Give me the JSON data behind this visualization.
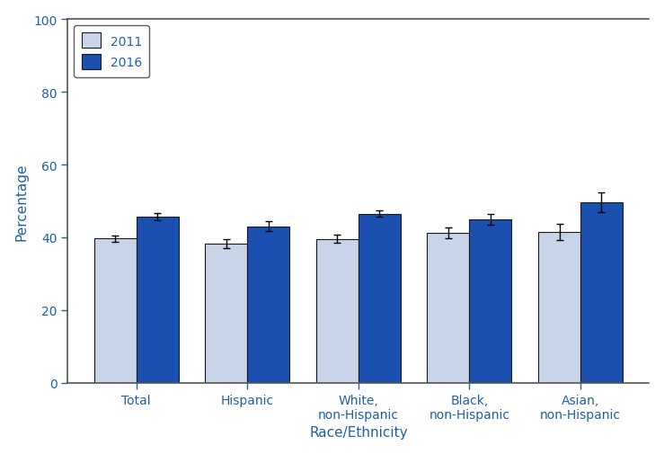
{
  "categories": [
    "Total",
    "Hispanic",
    "White,\nnon-Hispanic",
    "Black,\nnon-Hispanic",
    "Asian,\nnon-Hispanic"
  ],
  "values_2011": [
    39.7,
    38.3,
    39.6,
    41.2,
    41.5
  ],
  "values_2016": [
    45.7,
    43.0,
    46.5,
    44.9,
    49.6
  ],
  "errors_2011": [
    0.9,
    1.2,
    1.1,
    1.5,
    2.2
  ],
  "errors_2016": [
    0.9,
    1.4,
    0.8,
    1.5,
    2.8
  ],
  "color_2011": "#c8d4e8",
  "color_2016": "#1b50b0",
  "bar_edge_color": "#1a1a1a",
  "error_color": "#000000",
  "ylabel": "Percentage",
  "xlabel": "Race/Ethnicity",
  "ylim": [
    0,
    100
  ],
  "yticks": [
    0,
    20,
    40,
    60,
    80,
    100
  ],
  "legend_labels": [
    "2011",
    "2016"
  ],
  "bar_width": 0.38,
  "figsize": [
    7.39,
    5.06
  ],
  "dpi": 100,
  "label_color": "#1f5fa6"
}
